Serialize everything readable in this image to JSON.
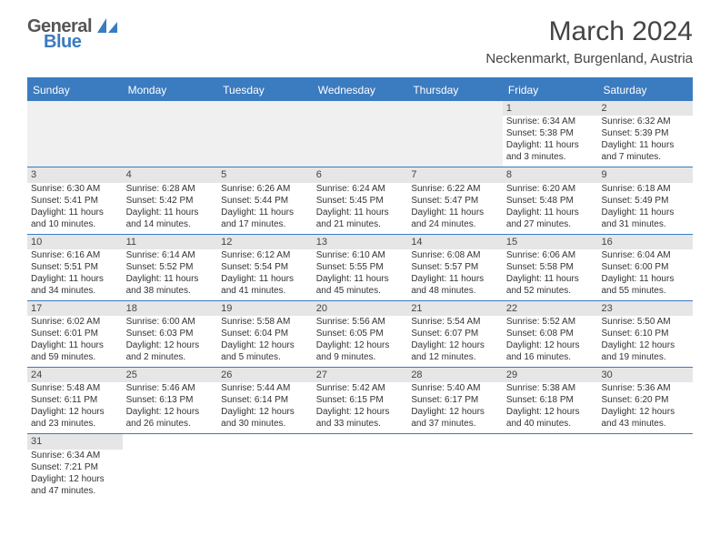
{
  "logo": {
    "general": "Genera",
    "l": "l",
    "blue": "Blue"
  },
  "title": "March 2024",
  "location": "Neckenmarkt, Burgenland, Austria",
  "weekdays": [
    "Sunday",
    "Monday",
    "Tuesday",
    "Wednesday",
    "Thursday",
    "Friday",
    "Saturday"
  ],
  "colors": {
    "header_bar": "#3b7bbf",
    "row_divider": "#3b7bbf",
    "daynum_bg": "#e6e6e6",
    "empty_bg": "#f0f0f0",
    "text": "#333333",
    "logo_gray": "#555555",
    "logo_blue": "#3b7bbf"
  },
  "weeks": [
    [
      {
        "empty": true
      },
      {
        "empty": true
      },
      {
        "empty": true
      },
      {
        "empty": true
      },
      {
        "empty": true
      },
      {
        "num": "1",
        "sunrise": "Sunrise: 6:34 AM",
        "sunset": "Sunset: 5:38 PM",
        "daylight1": "Daylight: 11 hours",
        "daylight2": "and 3 minutes."
      },
      {
        "num": "2",
        "sunrise": "Sunrise: 6:32 AM",
        "sunset": "Sunset: 5:39 PM",
        "daylight1": "Daylight: 11 hours",
        "daylight2": "and 7 minutes."
      }
    ],
    [
      {
        "num": "3",
        "sunrise": "Sunrise: 6:30 AM",
        "sunset": "Sunset: 5:41 PM",
        "daylight1": "Daylight: 11 hours",
        "daylight2": "and 10 minutes."
      },
      {
        "num": "4",
        "sunrise": "Sunrise: 6:28 AM",
        "sunset": "Sunset: 5:42 PM",
        "daylight1": "Daylight: 11 hours",
        "daylight2": "and 14 minutes."
      },
      {
        "num": "5",
        "sunrise": "Sunrise: 6:26 AM",
        "sunset": "Sunset: 5:44 PM",
        "daylight1": "Daylight: 11 hours",
        "daylight2": "and 17 minutes."
      },
      {
        "num": "6",
        "sunrise": "Sunrise: 6:24 AM",
        "sunset": "Sunset: 5:45 PM",
        "daylight1": "Daylight: 11 hours",
        "daylight2": "and 21 minutes."
      },
      {
        "num": "7",
        "sunrise": "Sunrise: 6:22 AM",
        "sunset": "Sunset: 5:47 PM",
        "daylight1": "Daylight: 11 hours",
        "daylight2": "and 24 minutes."
      },
      {
        "num": "8",
        "sunrise": "Sunrise: 6:20 AM",
        "sunset": "Sunset: 5:48 PM",
        "daylight1": "Daylight: 11 hours",
        "daylight2": "and 27 minutes."
      },
      {
        "num": "9",
        "sunrise": "Sunrise: 6:18 AM",
        "sunset": "Sunset: 5:49 PM",
        "daylight1": "Daylight: 11 hours",
        "daylight2": "and 31 minutes."
      }
    ],
    [
      {
        "num": "10",
        "sunrise": "Sunrise: 6:16 AM",
        "sunset": "Sunset: 5:51 PM",
        "daylight1": "Daylight: 11 hours",
        "daylight2": "and 34 minutes."
      },
      {
        "num": "11",
        "sunrise": "Sunrise: 6:14 AM",
        "sunset": "Sunset: 5:52 PM",
        "daylight1": "Daylight: 11 hours",
        "daylight2": "and 38 minutes."
      },
      {
        "num": "12",
        "sunrise": "Sunrise: 6:12 AM",
        "sunset": "Sunset: 5:54 PM",
        "daylight1": "Daylight: 11 hours",
        "daylight2": "and 41 minutes."
      },
      {
        "num": "13",
        "sunrise": "Sunrise: 6:10 AM",
        "sunset": "Sunset: 5:55 PM",
        "daylight1": "Daylight: 11 hours",
        "daylight2": "and 45 minutes."
      },
      {
        "num": "14",
        "sunrise": "Sunrise: 6:08 AM",
        "sunset": "Sunset: 5:57 PM",
        "daylight1": "Daylight: 11 hours",
        "daylight2": "and 48 minutes."
      },
      {
        "num": "15",
        "sunrise": "Sunrise: 6:06 AM",
        "sunset": "Sunset: 5:58 PM",
        "daylight1": "Daylight: 11 hours",
        "daylight2": "and 52 minutes."
      },
      {
        "num": "16",
        "sunrise": "Sunrise: 6:04 AM",
        "sunset": "Sunset: 6:00 PM",
        "daylight1": "Daylight: 11 hours",
        "daylight2": "and 55 minutes."
      }
    ],
    [
      {
        "num": "17",
        "sunrise": "Sunrise: 6:02 AM",
        "sunset": "Sunset: 6:01 PM",
        "daylight1": "Daylight: 11 hours",
        "daylight2": "and 59 minutes."
      },
      {
        "num": "18",
        "sunrise": "Sunrise: 6:00 AM",
        "sunset": "Sunset: 6:03 PM",
        "daylight1": "Daylight: 12 hours",
        "daylight2": "and 2 minutes."
      },
      {
        "num": "19",
        "sunrise": "Sunrise: 5:58 AM",
        "sunset": "Sunset: 6:04 PM",
        "daylight1": "Daylight: 12 hours",
        "daylight2": "and 5 minutes."
      },
      {
        "num": "20",
        "sunrise": "Sunrise: 5:56 AM",
        "sunset": "Sunset: 6:05 PM",
        "daylight1": "Daylight: 12 hours",
        "daylight2": "and 9 minutes."
      },
      {
        "num": "21",
        "sunrise": "Sunrise: 5:54 AM",
        "sunset": "Sunset: 6:07 PM",
        "daylight1": "Daylight: 12 hours",
        "daylight2": "and 12 minutes."
      },
      {
        "num": "22",
        "sunrise": "Sunrise: 5:52 AM",
        "sunset": "Sunset: 6:08 PM",
        "daylight1": "Daylight: 12 hours",
        "daylight2": "and 16 minutes."
      },
      {
        "num": "23",
        "sunrise": "Sunrise: 5:50 AM",
        "sunset": "Sunset: 6:10 PM",
        "daylight1": "Daylight: 12 hours",
        "daylight2": "and 19 minutes."
      }
    ],
    [
      {
        "num": "24",
        "sunrise": "Sunrise: 5:48 AM",
        "sunset": "Sunset: 6:11 PM",
        "daylight1": "Daylight: 12 hours",
        "daylight2": "and 23 minutes."
      },
      {
        "num": "25",
        "sunrise": "Sunrise: 5:46 AM",
        "sunset": "Sunset: 6:13 PM",
        "daylight1": "Daylight: 12 hours",
        "daylight2": "and 26 minutes."
      },
      {
        "num": "26",
        "sunrise": "Sunrise: 5:44 AM",
        "sunset": "Sunset: 6:14 PM",
        "daylight1": "Daylight: 12 hours",
        "daylight2": "and 30 minutes."
      },
      {
        "num": "27",
        "sunrise": "Sunrise: 5:42 AM",
        "sunset": "Sunset: 6:15 PM",
        "daylight1": "Daylight: 12 hours",
        "daylight2": "and 33 minutes."
      },
      {
        "num": "28",
        "sunrise": "Sunrise: 5:40 AM",
        "sunset": "Sunset: 6:17 PM",
        "daylight1": "Daylight: 12 hours",
        "daylight2": "and 37 minutes."
      },
      {
        "num": "29",
        "sunrise": "Sunrise: 5:38 AM",
        "sunset": "Sunset: 6:18 PM",
        "daylight1": "Daylight: 12 hours",
        "daylight2": "and 40 minutes."
      },
      {
        "num": "30",
        "sunrise": "Sunrise: 5:36 AM",
        "sunset": "Sunset: 6:20 PM",
        "daylight1": "Daylight: 12 hours",
        "daylight2": "and 43 minutes."
      }
    ],
    [
      {
        "num": "31",
        "sunrise": "Sunrise: 6:34 AM",
        "sunset": "Sunset: 7:21 PM",
        "daylight1": "Daylight: 12 hours",
        "daylight2": "and 47 minutes."
      },
      {
        "empty": true
      },
      {
        "empty": true
      },
      {
        "empty": true
      },
      {
        "empty": true
      },
      {
        "empty": true
      },
      {
        "empty": true
      }
    ]
  ]
}
